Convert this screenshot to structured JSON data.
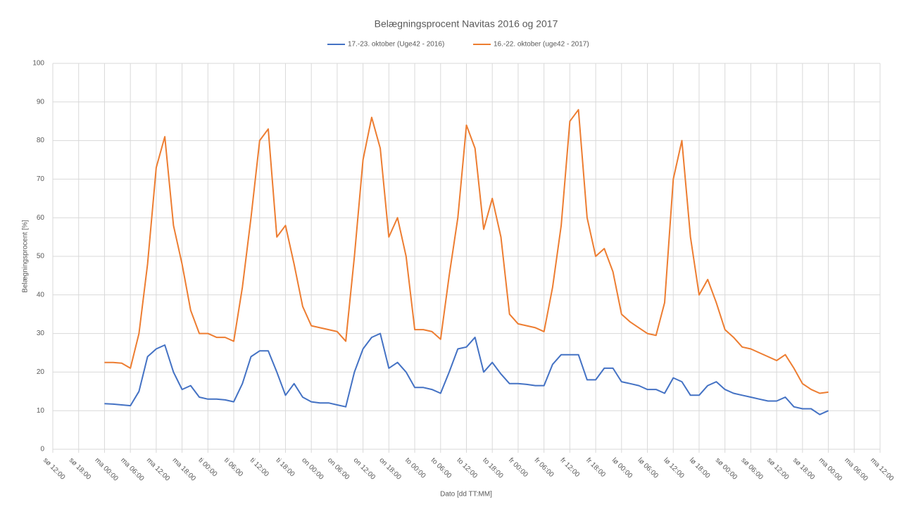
{
  "chart_data": {
    "type": "line",
    "title": "Belægningsprocent Navitas 2016 og 2017",
    "y_label": "Belægningsprocent [%]",
    "x_label": "Dato [dd TT:MM]",
    "x": [
      12,
      14,
      16,
      18,
      20,
      22,
      24,
      26,
      28,
      30,
      32,
      34,
      36,
      38,
      40,
      42,
      44,
      46,
      48,
      50,
      52,
      54,
      56,
      58,
      60,
      62,
      64,
      66,
      68,
      70,
      72,
      74,
      76,
      78,
      80,
      82,
      84,
      86,
      88,
      90,
      92,
      94,
      96,
      98,
      100,
      102,
      104,
      106,
      108,
      110,
      112,
      114,
      116,
      118,
      120,
      122,
      124,
      126,
      128,
      130,
      132,
      134,
      136,
      138,
      140,
      142,
      144,
      146,
      148,
      150,
      152,
      154,
      156,
      158,
      160,
      162,
      164,
      166,
      168,
      170,
      172,
      174,
      176,
      178,
      180
    ],
    "series": [
      {
        "name": "17.-23. oktober (Uge42 - 2016)",
        "color": "#4472c4",
        "values": [
          11.8,
          11.7,
          11.5,
          11.3,
          15,
          24,
          26,
          27,
          20,
          15.5,
          16.5,
          13.5,
          13,
          13,
          12.8,
          12.3,
          17,
          24,
          25.5,
          25.5,
          20,
          14,
          17,
          13.5,
          12.3,
          12,
          12,
          11.5,
          11,
          20,
          26,
          29,
          30,
          21,
          22.5,
          20,
          16,
          16,
          15.5,
          14.5,
          20,
          26,
          26.5,
          29,
          20,
          22.5,
          19.5,
          17,
          17,
          16.8,
          16.5,
          16.5,
          22,
          24.5,
          24.5,
          24.5,
          18,
          18,
          21,
          21,
          17.5,
          17,
          16.5,
          15.5,
          15.5,
          14.5,
          18.5,
          17.5,
          14,
          14,
          16.5,
          17.5,
          15.5,
          14.5,
          14,
          13.5,
          13,
          12.5,
          12.5,
          13.5,
          11,
          10.5,
          10.5,
          9,
          10
        ]
      },
      {
        "name": "16.-22. oktober (uge42 - 2017)",
        "color": "#ed7d31",
        "values": [
          22.5,
          22.5,
          22.3,
          21,
          30,
          48,
          73,
          81,
          58,
          48,
          36,
          30,
          30,
          29,
          29,
          28,
          42,
          60,
          80,
          83,
          55,
          58,
          48,
          37,
          32,
          31.5,
          31,
          30.5,
          28,
          50,
          75,
          86,
          78,
          55,
          60,
          50,
          31,
          31,
          30.5,
          28.5,
          45,
          60,
          84,
          78,
          57,
          65,
          55,
          35,
          32.5,
          32,
          31.5,
          30.5,
          42,
          58,
          85,
          88,
          60,
          50,
          52,
          46,
          35,
          33,
          31.5,
          30,
          29.5,
          38,
          70,
          80,
          55,
          40,
          44,
          38,
          31,
          29,
          26.5,
          26,
          25,
          24,
          23,
          24.5,
          21,
          17,
          15.5,
          14.5,
          14.8
        ]
      }
    ],
    "xlim": [
      0,
      192
    ],
    "xticks": [
      {
        "value": 0,
        "label": "sø 12:00"
      },
      {
        "value": 6,
        "label": "sø 18:00"
      },
      {
        "value": 12,
        "label": "ma 00:00"
      },
      {
        "value": 18,
        "label": "ma 06:00"
      },
      {
        "value": 24,
        "label": "ma 12:00"
      },
      {
        "value": 30,
        "label": "ma 18:00"
      },
      {
        "value": 36,
        "label": "ti 00:00"
      },
      {
        "value": 42,
        "label": "ti 06:00"
      },
      {
        "value": 48,
        "label": "ti 12:00"
      },
      {
        "value": 54,
        "label": "ti 18:00"
      },
      {
        "value": 60,
        "label": "on 00:00"
      },
      {
        "value": 66,
        "label": "on 06:00"
      },
      {
        "value": 72,
        "label": "on 12:00"
      },
      {
        "value": 78,
        "label": "on 18:00"
      },
      {
        "value": 84,
        "label": "to 00:00"
      },
      {
        "value": 90,
        "label": "to 06:00"
      },
      {
        "value": 96,
        "label": "to 12:00"
      },
      {
        "value": 102,
        "label": "to 18:00"
      },
      {
        "value": 108,
        "label": "fr 00:00"
      },
      {
        "value": 114,
        "label": "fr 06:00"
      },
      {
        "value": 120,
        "label": "fr 12:00"
      },
      {
        "value": 126,
        "label": "fr 18:00"
      },
      {
        "value": 132,
        "label": "lø 00:00"
      },
      {
        "value": 138,
        "label": "lø 06:00"
      },
      {
        "value": 144,
        "label": "lø 12:00"
      },
      {
        "value": 150,
        "label": "lø 18:00"
      },
      {
        "value": 156,
        "label": "sø 00:00"
      },
      {
        "value": 162,
        "label": "sø 06:00"
      },
      {
        "value": 168,
        "label": "sø 12:00"
      },
      {
        "value": 174,
        "label": "sø 18:00"
      },
      {
        "value": 180,
        "label": "ma 00:00"
      },
      {
        "value": 186,
        "label": "ma 06:00"
      },
      {
        "value": 192,
        "label": "ma 12:00"
      }
    ],
    "ylim": [
      0,
      100
    ],
    "yticks": [
      0,
      10,
      20,
      30,
      40,
      50,
      60,
      70,
      80,
      90,
      100
    ],
    "grid": true
  }
}
